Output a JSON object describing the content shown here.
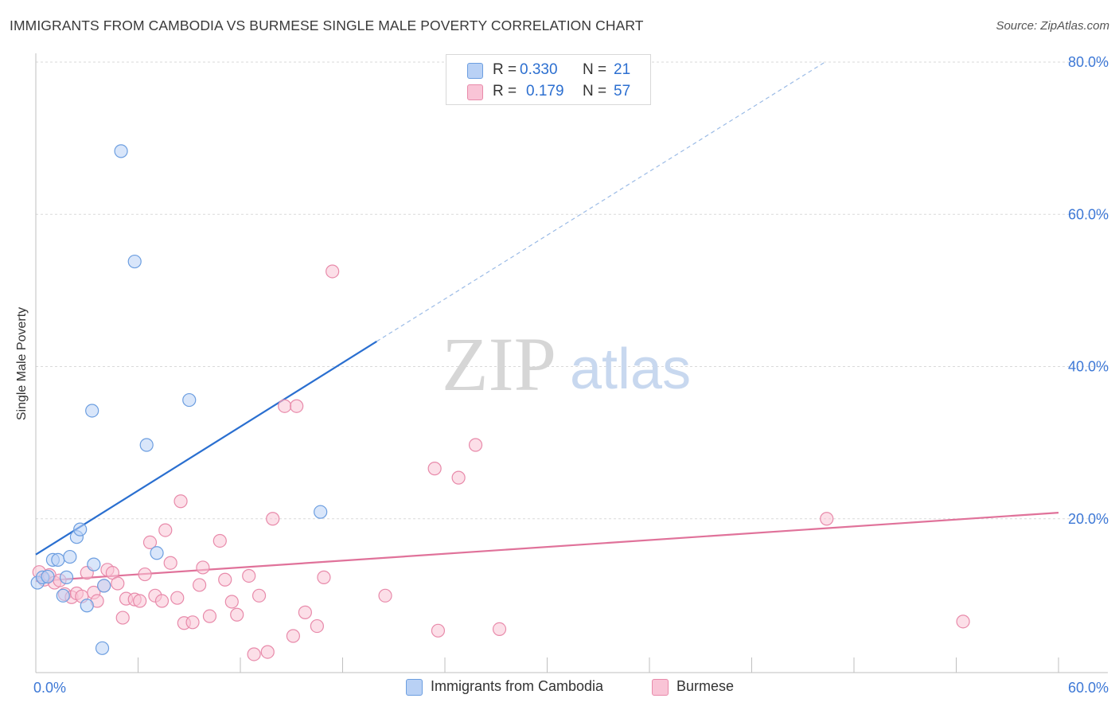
{
  "header": {
    "title": "IMMIGRANTS FROM CAMBODIA VS BURMESE SINGLE MALE POVERTY CORRELATION CHART",
    "source": "Source: ZipAtlas.com"
  },
  "legend": {
    "rows": [
      {
        "r_label": "R =",
        "r_value": "0.330",
        "n_label": "N =",
        "n_value": "21"
      },
      {
        "r_label": "R =",
        "r_value": "0.179",
        "n_label": "N =",
        "n_value": "57"
      }
    ]
  },
  "watermark": {
    "zip": "ZIP",
    "atlas": "atlas"
  },
  "colors": {
    "cambodia_fill": "#b9d1f5",
    "cambodia_stroke": "#6c9ee0",
    "cambodia_line": "#2a6fd0",
    "burmese_fill": "#f9c4d6",
    "burmese_stroke": "#e88aaa",
    "burmese_line": "#e0729a",
    "tick_label": "#3d78d6",
    "grid": "#dadada"
  },
  "chart_data": {
    "type": "scatter",
    "title": "IMMIGRANTS FROM CAMBODIA VS BURMESE SINGLE MALE POVERTY CORRELATION CHART",
    "xlabel": "",
    "ylabel": "Single Male Poverty",
    "xlim": [
      0,
      60
    ],
    "ylim": [
      0,
      80
    ],
    "x_tick_labels": [
      {
        "value": 0,
        "label": "0.0%"
      },
      {
        "value": 60,
        "label": "60.0%"
      }
    ],
    "y_tick_labels": [
      {
        "value": 20,
        "label": "20.0%"
      },
      {
        "value": 40,
        "label": "40.0%"
      },
      {
        "value": 60,
        "label": "60.0%"
      },
      {
        "value": 80,
        "label": "80.0%"
      }
    ],
    "grid": true,
    "series": [
      {
        "name": "Immigrants from Cambodia",
        "color": "#6c9ee0",
        "r": 0.33,
        "n": 21,
        "points": [
          [
            0.1,
            11.6
          ],
          [
            0.4,
            12.3
          ],
          [
            0.7,
            12.4
          ],
          [
            1.0,
            14.6
          ],
          [
            1.3,
            14.6
          ],
          [
            1.6,
            9.9
          ],
          [
            1.8,
            12.3
          ],
          [
            2.0,
            15.0
          ],
          [
            2.4,
            17.6
          ],
          [
            2.6,
            18.6
          ],
          [
            3.0,
            8.6
          ],
          [
            3.3,
            34.2
          ],
          [
            3.4,
            14.0
          ],
          [
            3.9,
            3.0
          ],
          [
            4.0,
            11.2
          ],
          [
            5.0,
            68.3
          ],
          [
            5.8,
            53.8
          ],
          [
            6.5,
            29.7
          ],
          [
            7.1,
            15.5
          ],
          [
            9.0,
            35.6
          ],
          [
            16.7,
            20.9
          ]
        ],
        "trend": {
          "x_start": 0,
          "y_start": 15.3,
          "x_solid_end": 20,
          "y_solid_end": 43.3,
          "x_dash_end": 46.3,
          "y_dash_end": 80
        }
      },
      {
        "name": "Burmese",
        "color": "#e88aaa",
        "r": 0.179,
        "n": 57,
        "points": [
          [
            0.2,
            13.0
          ],
          [
            0.5,
            12.0
          ],
          [
            0.8,
            12.6
          ],
          [
            1.1,
            11.6
          ],
          [
            1.4,
            11.9
          ],
          [
            1.7,
            10.1
          ],
          [
            2.1,
            9.7
          ],
          [
            2.4,
            10.2
          ],
          [
            2.7,
            9.8
          ],
          [
            3.0,
            12.9
          ],
          [
            3.4,
            10.3
          ],
          [
            3.6,
            9.2
          ],
          [
            4.0,
            11.2
          ],
          [
            4.2,
            13.3
          ],
          [
            4.5,
            12.9
          ],
          [
            4.8,
            11.5
          ],
          [
            5.1,
            7.0
          ],
          [
            5.3,
            9.5
          ],
          [
            5.8,
            9.4
          ],
          [
            6.1,
            9.2
          ],
          [
            6.4,
            12.7
          ],
          [
            6.7,
            16.9
          ],
          [
            7.0,
            9.9
          ],
          [
            7.4,
            9.2
          ],
          [
            7.6,
            18.5
          ],
          [
            7.9,
            14.2
          ],
          [
            8.3,
            9.6
          ],
          [
            8.5,
            22.3
          ],
          [
            8.7,
            6.3
          ],
          [
            9.2,
            6.4
          ],
          [
            9.6,
            11.3
          ],
          [
            9.8,
            13.6
          ],
          [
            10.2,
            7.2
          ],
          [
            10.8,
            17.1
          ],
          [
            11.1,
            12.0
          ],
          [
            11.5,
            9.1
          ],
          [
            11.8,
            7.4
          ],
          [
            12.5,
            12.5
          ],
          [
            12.8,
            2.2
          ],
          [
            13.1,
            9.9
          ],
          [
            13.6,
            2.5
          ],
          [
            13.9,
            20.0
          ],
          [
            14.6,
            34.8
          ],
          [
            15.1,
            4.6
          ],
          [
            15.3,
            34.8
          ],
          [
            15.8,
            7.7
          ],
          [
            16.5,
            5.9
          ],
          [
            16.9,
            12.3
          ],
          [
            17.4,
            52.5
          ],
          [
            20.5,
            9.9
          ],
          [
            23.4,
            26.6
          ],
          [
            23.6,
            5.3
          ],
          [
            24.8,
            25.4
          ],
          [
            25.8,
            29.7
          ],
          [
            27.2,
            5.5
          ],
          [
            46.4,
            20.0
          ],
          [
            54.4,
            6.5
          ]
        ],
        "trend": {
          "x_start": 0,
          "y_start": 11.8,
          "x_end": 60,
          "y_end": 20.8
        }
      }
    ],
    "legend_entries": [
      "Immigrants from Cambodia",
      "Burmese"
    ]
  }
}
